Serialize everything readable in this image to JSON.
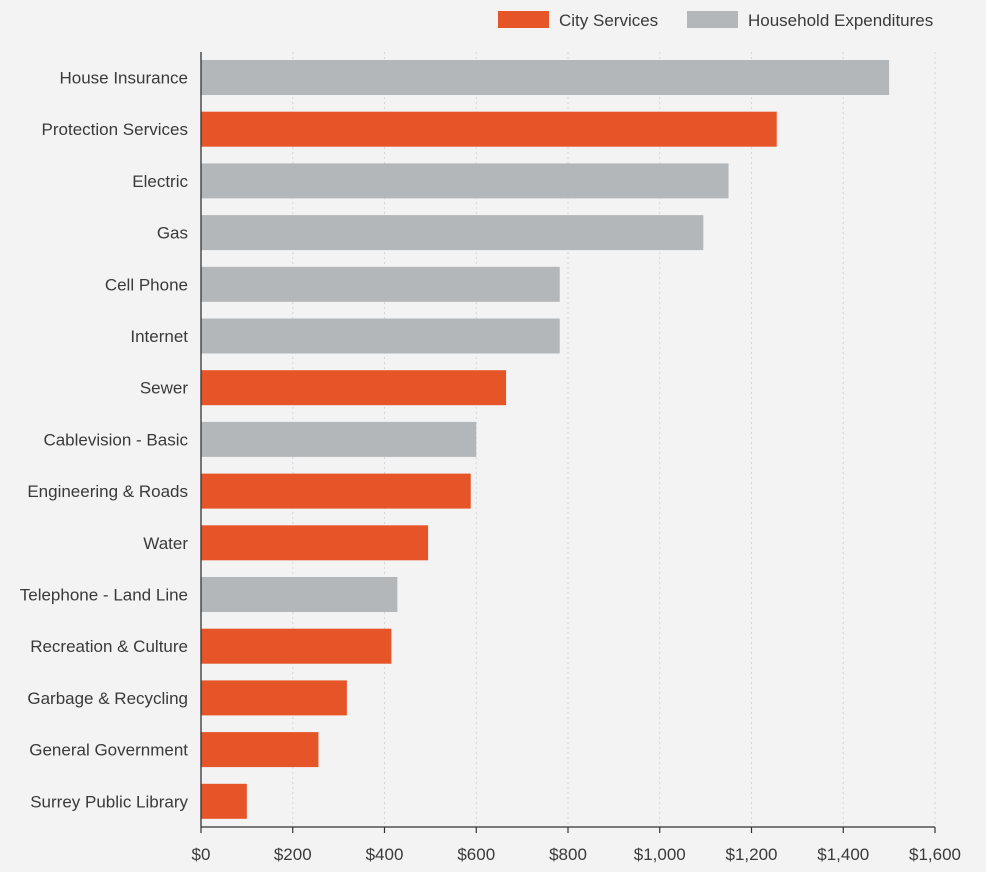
{
  "chart_data": {
    "type": "bar",
    "orientation": "horizontal",
    "categories": [
      "House Insurance",
      "Protection Services",
      "Electric",
      "Gas",
      "Cell Phone",
      "Internet",
      "Sewer",
      "Cablevision - Basic",
      "Engineering & Roads",
      "Water",
      "Telephone - Land Line",
      "Recreation & Culture",
      "Garbage & Recycling",
      "General Government",
      "Surrey Public Library"
    ],
    "values": [
      1500,
      1255,
      1150,
      1095,
      782,
      782,
      665,
      600,
      588,
      495,
      428,
      415,
      318,
      256,
      100
    ],
    "groups": [
      "Household Expenditures",
      "City Services",
      "Household Expenditures",
      "Household Expenditures",
      "Household Expenditures",
      "Household Expenditures",
      "City Services",
      "Household Expenditures",
      "City Services",
      "City Services",
      "Household Expenditures",
      "City Services",
      "City Services",
      "City Services",
      "City Services"
    ],
    "legend": {
      "placement": "top-right",
      "entries": [
        {
          "name": "City Services",
          "color": "#e55527"
        },
        {
          "name": "Household Expenditures",
          "color": "#b4b7ba"
        }
      ]
    },
    "x_ticks": [
      0,
      200,
      400,
      600,
      800,
      1000,
      1200,
      1400,
      1600
    ],
    "x_tick_labels": [
      "$0",
      "$200",
      "$400",
      "$600",
      "$800",
      "$1,000",
      "$1,200",
      "$1,400",
      "$1,600"
    ],
    "xlim": [
      0,
      1600
    ],
    "grid": "vertical-dotted",
    "title": "",
    "xlabel": "",
    "ylabel": ""
  }
}
